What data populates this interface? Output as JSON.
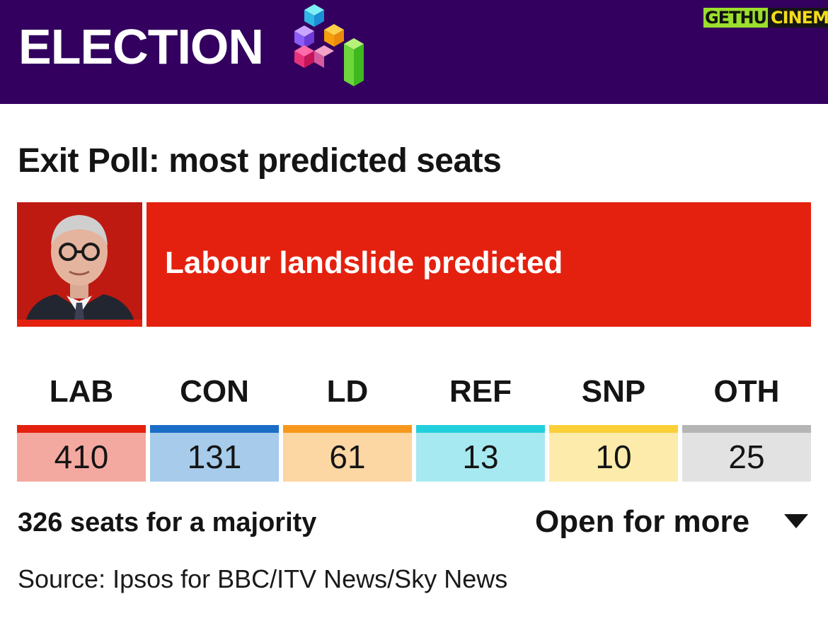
{
  "header": {
    "title": "ELECTION",
    "logo_icon": "election-cubes-icon",
    "watermark": {
      "part1": "GETHU",
      "part2": "CINEMA"
    },
    "colors": {
      "background": "#33005f",
      "text": "#ffffff"
    }
  },
  "headline": "Exit Poll: most predicted seats",
  "callout": {
    "text": "Labour landslide predicted",
    "color": "#e4210f",
    "image": "party-leader-portrait"
  },
  "parties": [
    {
      "abbr": "LAB",
      "seats": "410",
      "bar_color": "#e4210f",
      "box_color": "#f4a9a0"
    },
    {
      "abbr": "CON",
      "seats": "131",
      "bar_color": "#1b6ec7",
      "box_color": "#a6cbeb"
    },
    {
      "abbr": "LD",
      "seats": "61",
      "bar_color": "#f7981d",
      "box_color": "#fcd6a3"
    },
    {
      "abbr": "REF",
      "seats": "13",
      "bar_color": "#22cfdc",
      "box_color": "#a7e9f0"
    },
    {
      "abbr": "SNP",
      "seats": "10",
      "bar_color": "#fbcf37",
      "box_color": "#fcebab"
    },
    {
      "abbr": "OTH",
      "seats": "25",
      "bar_color": "#b5b5b5",
      "box_color": "#e2e2e2"
    }
  ],
  "majority_text": "326 seats for a majority",
  "expand": {
    "label": "Open for more",
    "icon": "triangle-down-icon"
  },
  "source": "Source: Ipsos for BBC/ITV News/Sky News"
}
